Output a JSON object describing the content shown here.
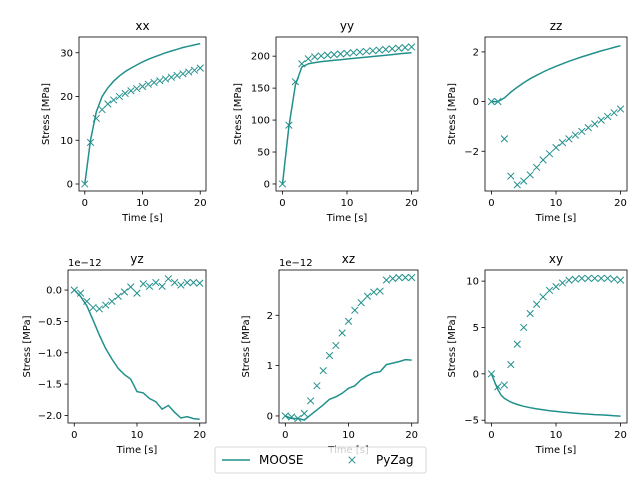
{
  "chart_data": [
    {
      "type": "line",
      "title": "xx",
      "xlabel": "Time [s]",
      "ylabel": "Stress [MPa]",
      "xlim": [
        -1,
        21
      ],
      "ylim": [
        -1.6,
        33.6
      ],
      "xticks": [
        0,
        10,
        20
      ],
      "yticks": [
        0,
        10,
        20,
        30
      ],
      "multiplier": "",
      "series": [
        {
          "name": "MOOSE",
          "style": "line",
          "x": [
            0,
            1,
            2,
            3,
            4,
            5,
            6,
            7,
            8,
            9,
            10,
            11,
            12,
            13,
            14,
            15,
            16,
            17,
            18,
            19,
            20
          ],
          "y": [
            0,
            10,
            16.5,
            20,
            22,
            23.5,
            24.7,
            25.7,
            26.5,
            27.2,
            27.9,
            28.5,
            29,
            29.5,
            30,
            30.4,
            30.8,
            31.2,
            31.5,
            31.8,
            32.1
          ]
        },
        {
          "name": "PyZag",
          "style": "marker",
          "x": [
            0,
            1,
            2,
            3,
            4,
            5,
            6,
            7,
            8,
            9,
            10,
            11,
            12,
            13,
            14,
            15,
            16,
            17,
            18,
            19,
            20
          ],
          "y": [
            0,
            9.5,
            15,
            17,
            18.3,
            19.2,
            20,
            20.7,
            21.3,
            21.8,
            22.3,
            22.8,
            23.2,
            23.6,
            24,
            24.4,
            24.8,
            25.2,
            25.6,
            26,
            26.5
          ]
        }
      ]
    },
    {
      "type": "line",
      "title": "yy",
      "xlabel": "Time [s]",
      "ylabel": "Stress [MPa]",
      "xlim": [
        -1,
        21
      ],
      "ylim": [
        -11,
        230
      ],
      "xticks": [
        0,
        10,
        20
      ],
      "yticks": [
        0,
        50,
        100,
        150,
        200
      ],
      "multiplier": "",
      "series": [
        {
          "name": "MOOSE",
          "style": "line",
          "x": [
            0,
            1,
            2,
            3,
            4,
            5,
            6,
            7,
            8,
            9,
            10,
            11,
            12,
            13,
            14,
            15,
            16,
            17,
            18,
            19,
            20
          ],
          "y": [
            0,
            90,
            155,
            183,
            188,
            190,
            191.5,
            192.5,
            193.5,
            194.5,
            195.5,
            196.5,
            197.5,
            198.5,
            199.5,
            200.5,
            201.5,
            202.5,
            203.5,
            204.5,
            205.5
          ]
        },
        {
          "name": "PyZag",
          "style": "marker",
          "x": [
            0,
            1,
            2,
            3,
            4,
            5,
            6,
            7,
            8,
            9,
            10,
            11,
            12,
            13,
            14,
            15,
            16,
            17,
            18,
            19,
            20
          ],
          "y": [
            0,
            92,
            160,
            188,
            196,
            199,
            200.5,
            201.5,
            202.5,
            203.5,
            204.5,
            205.5,
            206.5,
            207.5,
            208.5,
            209.5,
            210.5,
            211.5,
            212.5,
            213.5,
            214.5
          ]
        }
      ]
    },
    {
      "type": "line",
      "title": "zz",
      "xlabel": "Time [s]",
      "ylabel": "Stress [MPa]",
      "xlim": [
        -1,
        21
      ],
      "ylim": [
        -3.6,
        2.6
      ],
      "xticks": [
        0,
        10,
        20
      ],
      "yticks": [
        -2,
        0,
        2
      ],
      "multiplier": "",
      "series": [
        {
          "name": "MOOSE",
          "style": "line",
          "x": [
            0,
            1,
            2,
            3,
            4,
            5,
            6,
            7,
            8,
            9,
            10,
            11,
            12,
            13,
            14,
            15,
            16,
            17,
            18,
            19,
            20
          ],
          "y": [
            0,
            0,
            0.15,
            0.38,
            0.58,
            0.76,
            0.92,
            1.06,
            1.19,
            1.31,
            1.42,
            1.52,
            1.62,
            1.71,
            1.8,
            1.88,
            1.96,
            2.04,
            2.11,
            2.18,
            2.25
          ]
        },
        {
          "name": "PyZag",
          "style": "marker",
          "x": [
            0,
            1,
            2,
            3,
            4,
            5,
            6,
            7,
            8,
            9,
            10,
            11,
            12,
            13,
            14,
            15,
            16,
            17,
            18,
            19,
            20
          ],
          "y": [
            0,
            0,
            -1.5,
            -3.0,
            -3.35,
            -3.2,
            -2.95,
            -2.65,
            -2.35,
            -2.1,
            -1.85,
            -1.65,
            -1.5,
            -1.35,
            -1.2,
            -1.05,
            -0.9,
            -0.75,
            -0.6,
            -0.45,
            -0.3
          ]
        }
      ]
    },
    {
      "type": "line",
      "title": "yz",
      "xlabel": "Time [s]",
      "ylabel": "Stress [MPa]",
      "xlim": [
        -1,
        21
      ],
      "ylim": [
        -2.12,
        0.32
      ],
      "xticks": [
        0,
        10,
        20
      ],
      "yticks": [
        -2.0,
        -1.5,
        -1.0,
        -0.5,
        0.0
      ],
      "multiplier": "1e−12",
      "series": [
        {
          "name": "MOOSE",
          "style": "line",
          "x": [
            0,
            1,
            2,
            3,
            4,
            5,
            6,
            7,
            8,
            9,
            10,
            11,
            12,
            13,
            14,
            15,
            16,
            17,
            18,
            19,
            20
          ],
          "y": [
            0,
            -0.1,
            -0.25,
            -0.48,
            -0.72,
            -0.93,
            -1.1,
            -1.25,
            -1.35,
            -1.42,
            -1.62,
            -1.64,
            -1.73,
            -1.78,
            -1.9,
            -1.84,
            -1.95,
            -2.04,
            -2.02,
            -2.05,
            -2.06
          ]
        },
        {
          "name": "PyZag",
          "style": "marker",
          "x": [
            0,
            1,
            2,
            3,
            4,
            5,
            6,
            7,
            8,
            9,
            10,
            11,
            12,
            13,
            14,
            15,
            16,
            17,
            18,
            19,
            20
          ],
          "y": [
            0,
            -0.05,
            -0.18,
            -0.28,
            -0.3,
            -0.24,
            -0.18,
            -0.1,
            -0.03,
            0.05,
            -0.05,
            0.1,
            0.06,
            0.12,
            0.06,
            0.18,
            0.12,
            0.08,
            0.12,
            0.12,
            0.11
          ]
        }
      ]
    },
    {
      "type": "line",
      "title": "xz",
      "xlabel": "Time [s]",
      "ylabel": "Stress [MPa]",
      "xlim": [
        -1,
        21
      ],
      "ylim": [
        -0.14,
        2.9
      ],
      "xticks": [
        0,
        10,
        20
      ],
      "yticks": [
        0,
        1,
        2
      ],
      "multiplier": "1e−12",
      "series": [
        {
          "name": "MOOSE",
          "style": "line",
          "x": [
            0,
            1,
            2,
            3,
            4,
            5,
            6,
            7,
            8,
            9,
            10,
            11,
            12,
            13,
            14,
            15,
            16,
            17,
            18,
            19,
            20
          ],
          "y": [
            0,
            -0.05,
            -0.05,
            -0.08,
            0.02,
            0.12,
            0.22,
            0.33,
            0.38,
            0.45,
            0.55,
            0.6,
            0.72,
            0.8,
            0.86,
            0.88,
            1.02,
            1.05,
            1.08,
            1.12,
            1.11
          ]
        },
        {
          "name": "PyZag",
          "style": "marker",
          "x": [
            0,
            1,
            2,
            3,
            4,
            5,
            6,
            7,
            8,
            9,
            10,
            11,
            12,
            13,
            14,
            15,
            16,
            17,
            18,
            19,
            20
          ],
          "y": [
            0,
            -0.02,
            -0.05,
            0.05,
            0.3,
            0.6,
            0.9,
            1.2,
            1.4,
            1.65,
            1.88,
            2.1,
            2.25,
            2.38,
            2.46,
            2.48,
            2.7,
            2.73,
            2.75,
            2.75,
            2.75
          ]
        }
      ]
    },
    {
      "type": "line",
      "title": "xy",
      "xlabel": "Time [s]",
      "ylabel": "Stress [MPa]",
      "xlim": [
        -1,
        21
      ],
      "ylim": [
        -5.3,
        11.2
      ],
      "xticks": [
        0,
        10,
        20
      ],
      "yticks": [
        -5,
        0,
        5,
        10
      ],
      "multiplier": "",
      "series": [
        {
          "name": "MOOSE",
          "style": "line",
          "x": [
            0,
            0.5,
            1,
            1.5,
            2,
            3,
            4,
            5,
            6,
            7,
            8,
            9,
            10,
            11,
            12,
            13,
            14,
            15,
            16,
            17,
            18,
            19,
            20
          ],
          "y": [
            0,
            -0.9,
            -1.7,
            -2.3,
            -2.65,
            -3.05,
            -3.3,
            -3.5,
            -3.65,
            -3.78,
            -3.88,
            -3.98,
            -4.05,
            -4.12,
            -4.18,
            -4.24,
            -4.3,
            -4.34,
            -4.39,
            -4.43,
            -4.47,
            -4.52,
            -4.56
          ]
        },
        {
          "name": "PyZag",
          "style": "marker",
          "x": [
            0,
            1,
            2,
            3,
            4,
            5,
            6,
            7,
            8,
            9,
            10,
            11,
            12,
            13,
            14,
            15,
            16,
            17,
            18,
            19,
            20
          ],
          "y": [
            0,
            -1.4,
            -1.2,
            1.0,
            3.2,
            5.0,
            6.5,
            7.5,
            8.3,
            9.0,
            9.4,
            9.8,
            10.1,
            10.2,
            10.3,
            10.3,
            10.3,
            10.3,
            10.3,
            10.2,
            10.1
          ]
        }
      ]
    }
  ],
  "legend": {
    "placement": "bottom-center",
    "entries": [
      "MOOSE",
      "PyZag"
    ]
  },
  "colors": {
    "series": "#21908c",
    "axis": "#000000",
    "legend_border": "#cccccc"
  }
}
